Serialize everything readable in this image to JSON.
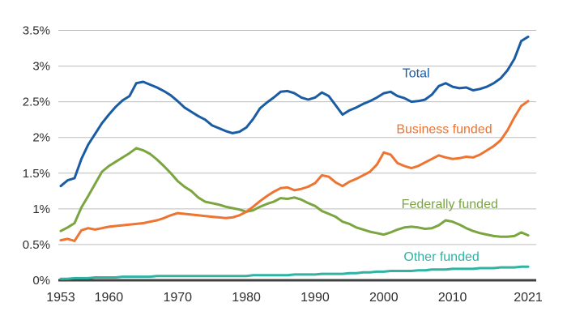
{
  "chart_data": {
    "type": "line",
    "title": "",
    "xlabel": "",
    "ylabel": "",
    "xlim": [
      1953,
      2021
    ],
    "ylim": [
      0,
      3.5
    ],
    "grid": "horizontal",
    "legend": "inline-labels",
    "x": [
      1953,
      1954,
      1955,
      1956,
      1957,
      1958,
      1959,
      1960,
      1961,
      1962,
      1963,
      1964,
      1965,
      1966,
      1967,
      1968,
      1969,
      1970,
      1971,
      1972,
      1973,
      1974,
      1975,
      1976,
      1977,
      1978,
      1979,
      1980,
      1981,
      1982,
      1983,
      1984,
      1985,
      1986,
      1987,
      1988,
      1989,
      1990,
      1991,
      1992,
      1993,
      1994,
      1995,
      1996,
      1997,
      1998,
      1999,
      2000,
      2001,
      2002,
      2003,
      2004,
      2005,
      2006,
      2007,
      2008,
      2009,
      2010,
      2011,
      2012,
      2013,
      2014,
      2015,
      2016,
      2017,
      2018,
      2019,
      2020,
      2021
    ],
    "y_ticks": [
      {
        "label": "0%",
        "value": 0
      },
      {
        "label": "0.5%",
        "value": 0.5
      },
      {
        "label": "1%",
        "value": 1
      },
      {
        "label": "1.5%",
        "value": 1.5
      },
      {
        "label": "2%",
        "value": 2
      },
      {
        "label": "2.5%",
        "value": 2.5
      },
      {
        "label": "3%",
        "value": 3
      },
      {
        "label": "3.5%",
        "value": 3.5
      }
    ],
    "x_ticks": [
      {
        "label": "1953",
        "value": 1953
      },
      {
        "label": "1960",
        "value": 1960
      },
      {
        "label": "1970",
        "value": 1970
      },
      {
        "label": "1980",
        "value": 1980
      },
      {
        "label": "1990",
        "value": 1990
      },
      {
        "label": "2000",
        "value": 2000
      },
      {
        "label": "2010",
        "value": 2010
      },
      {
        "label": "2021",
        "value": 2021
      }
    ],
    "series": [
      {
        "name": "Total",
        "color": "#1A5CA3",
        "label_anchor": {
          "x": 2004.7,
          "y": 2.91
        },
        "values": [
          1.32,
          1.4,
          1.43,
          1.7,
          1.9,
          2.05,
          2.2,
          2.32,
          2.43,
          2.52,
          2.58,
          2.76,
          2.78,
          2.74,
          2.7,
          2.65,
          2.59,
          2.51,
          2.42,
          2.36,
          2.3,
          2.25,
          2.17,
          2.13,
          2.09,
          2.06,
          2.08,
          2.14,
          2.26,
          2.41,
          2.49,
          2.56,
          2.64,
          2.65,
          2.62,
          2.56,
          2.53,
          2.56,
          2.63,
          2.58,
          2.45,
          2.32,
          2.38,
          2.42,
          2.47,
          2.51,
          2.56,
          2.62,
          2.64,
          2.58,
          2.55,
          2.5,
          2.51,
          2.53,
          2.6,
          2.72,
          2.76,
          2.71,
          2.69,
          2.7,
          2.66,
          2.68,
          2.71,
          2.76,
          2.83,
          2.94,
          3.1,
          3.35,
          3.41
        ]
      },
      {
        "name": "Business funded",
        "color": "#ED7431",
        "label_anchor": {
          "x": 2008.8,
          "y": 2.13
        },
        "values": [
          0.56,
          0.58,
          0.55,
          0.7,
          0.73,
          0.71,
          0.73,
          0.75,
          0.76,
          0.77,
          0.78,
          0.79,
          0.8,
          0.82,
          0.84,
          0.87,
          0.91,
          0.94,
          0.93,
          0.92,
          0.91,
          0.9,
          0.89,
          0.88,
          0.87,
          0.88,
          0.91,
          0.96,
          1.03,
          1.11,
          1.18,
          1.24,
          1.29,
          1.3,
          1.26,
          1.28,
          1.31,
          1.36,
          1.47,
          1.45,
          1.37,
          1.32,
          1.38,
          1.42,
          1.47,
          1.52,
          1.62,
          1.79,
          1.76,
          1.64,
          1.6,
          1.57,
          1.6,
          1.65,
          1.7,
          1.75,
          1.72,
          1.7,
          1.71,
          1.73,
          1.72,
          1.76,
          1.82,
          1.88,
          1.96,
          2.1,
          2.28,
          2.44,
          2.51
        ]
      },
      {
        "name": "Federally funded",
        "color": "#7AA53F",
        "label_anchor": {
          "x": 2009.6,
          "y": 1.08
        },
        "values": [
          0.69,
          0.74,
          0.8,
          1.02,
          1.18,
          1.35,
          1.52,
          1.6,
          1.66,
          1.72,
          1.78,
          1.85,
          1.82,
          1.77,
          1.69,
          1.6,
          1.5,
          1.39,
          1.31,
          1.25,
          1.16,
          1.1,
          1.08,
          1.06,
          1.03,
          1.01,
          0.99,
          0.96,
          0.98,
          1.03,
          1.07,
          1.1,
          1.15,
          1.14,
          1.16,
          1.13,
          1.08,
          1.04,
          0.97,
          0.93,
          0.89,
          0.82,
          0.79,
          0.74,
          0.71,
          0.68,
          0.66,
          0.64,
          0.67,
          0.71,
          0.74,
          0.75,
          0.74,
          0.72,
          0.73,
          0.77,
          0.84,
          0.82,
          0.78,
          0.73,
          0.69,
          0.66,
          0.64,
          0.62,
          0.61,
          0.61,
          0.62,
          0.67,
          0.63
        ]
      },
      {
        "name": "Other funded",
        "color": "#30B3A3",
        "label_anchor": {
          "x": 2008.4,
          "y": 0.34
        },
        "values": [
          0.02,
          0.02,
          0.03,
          0.03,
          0.03,
          0.04,
          0.04,
          0.04,
          0.04,
          0.05,
          0.05,
          0.05,
          0.05,
          0.05,
          0.06,
          0.06,
          0.06,
          0.06,
          0.06,
          0.06,
          0.06,
          0.06,
          0.06,
          0.06,
          0.06,
          0.06,
          0.06,
          0.06,
          0.07,
          0.07,
          0.07,
          0.07,
          0.07,
          0.07,
          0.08,
          0.08,
          0.08,
          0.08,
          0.09,
          0.09,
          0.09,
          0.09,
          0.1,
          0.1,
          0.11,
          0.11,
          0.12,
          0.12,
          0.13,
          0.13,
          0.13,
          0.13,
          0.14,
          0.14,
          0.15,
          0.15,
          0.15,
          0.16,
          0.16,
          0.16,
          0.16,
          0.17,
          0.17,
          0.17,
          0.18,
          0.18,
          0.18,
          0.19,
          0.19
        ]
      }
    ],
    "colors": {
      "gridline": "#BDBDBD",
      "axis": "#404040",
      "tick_text": "#2E2E2E",
      "background": "#FFFFFF"
    }
  }
}
